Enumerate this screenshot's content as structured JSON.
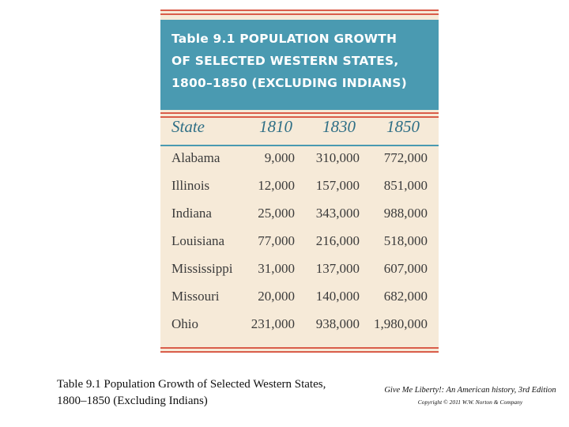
{
  "table": {
    "title": "Table 9.1 POPULATION GROWTH\nOF SELECTED WESTERN STATES,\n1800–1850 (EXCLUDING INDIANS)",
    "headers": [
      "State",
      "1810",
      "1830",
      "1850"
    ],
    "rows": [
      {
        "state": "Alabama",
        "y1810": "9,000",
        "y1830": "310,000",
        "y1850": "772,000"
      },
      {
        "state": "Illinois",
        "y1810": "12,000",
        "y1830": "157,000",
        "y1850": "851,000"
      },
      {
        "state": "Indiana",
        "y1810": "25,000",
        "y1830": "343,000",
        "y1850": "988,000"
      },
      {
        "state": "Louisiana",
        "y1810": "77,000",
        "y1830": "216,000",
        "y1850": "518,000"
      },
      {
        "state": "Mississippi",
        "y1810": "31,000",
        "y1830": "137,000",
        "y1850": "607,000"
      },
      {
        "state": "Missouri",
        "y1810": "20,000",
        "y1830": "140,000",
        "y1850": "682,000"
      },
      {
        "state": "Ohio",
        "y1810": "231,000",
        "y1830": "938,000",
        "y1850": "1,980,000"
      }
    ]
  },
  "caption": {
    "line1": "Table 9.1 Population Growth of Selected Western States,",
    "line2": "1800–1850 (Excluding Indians)"
  },
  "source": {
    "book": "Give Me Liberty!: An American history, 3rd Edition",
    "copyright": "Copyright © 2011 W.W. Norton & Company"
  },
  "colors": {
    "title_band": "#4a9ab1",
    "card_background": "#f6ead8",
    "rule": "#d95d4a",
    "header_text": "#2f6f86"
  }
}
